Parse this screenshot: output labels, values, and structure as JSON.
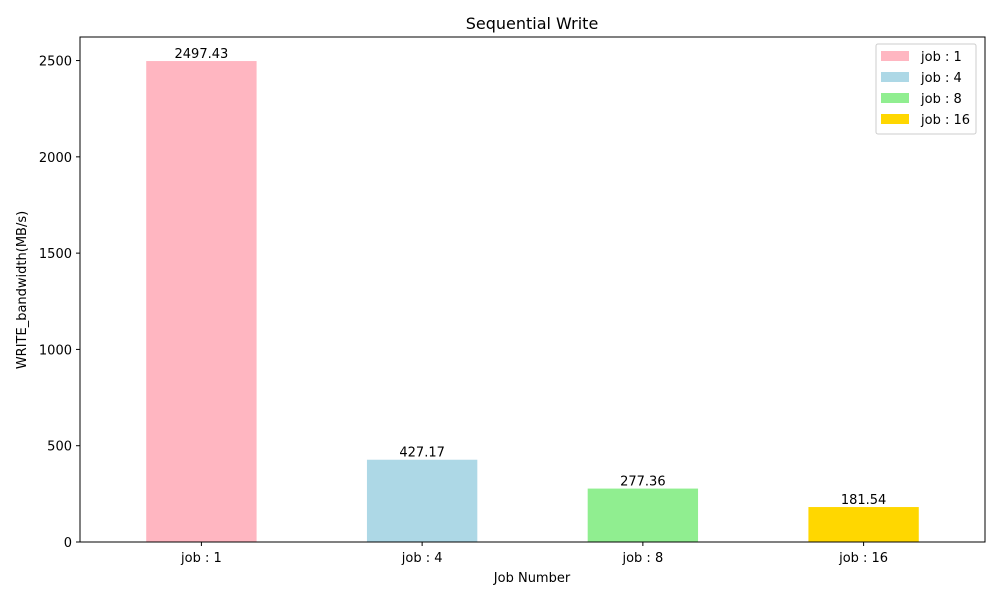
{
  "chart_data": {
    "type": "bar",
    "title": "Sequential Write",
    "xlabel": "Job Number",
    "ylabel": "WRITE_bandwidth(MB/s)",
    "categories": [
      "job : 1",
      "job : 4",
      "job : 8",
      "job : 16"
    ],
    "values": [
      2497.43,
      427.17,
      277.36,
      181.54
    ],
    "value_labels": [
      "2497.43",
      "427.17",
      "277.36",
      "181.54"
    ],
    "colors": [
      "#ffb6c1",
      "#add8e6",
      "#90ee90",
      "#ffd700"
    ],
    "ylim": [
      0,
      2622.3
    ],
    "yticks": [
      0,
      500,
      1000,
      1500,
      2000,
      2500
    ],
    "ytick_labels": [
      "0",
      "500",
      "1000",
      "1500",
      "2000",
      "2500"
    ],
    "grid": false,
    "legend": {
      "placement": "top-right",
      "entries": [
        "job : 1",
        "job : 4",
        "job : 8",
        "job : 16"
      ]
    }
  }
}
